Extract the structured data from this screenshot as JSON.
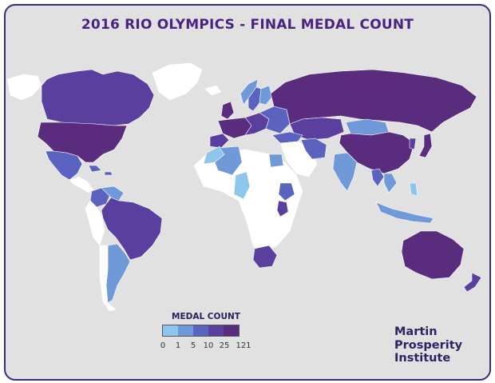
{
  "title": "2016 RIO OLYMPICS - FINAL MEDAL COUNT",
  "legend": {
    "title": "MEDAL COUNT",
    "thresholds": [
      "0",
      "1",
      "5",
      "10",
      "25",
      "121"
    ],
    "colors": [
      "#8ec5ea",
      "#6f99d8",
      "#5a63c0",
      "#5a3f9e",
      "#5a2c7e"
    ]
  },
  "brand": {
    "line1": "Martin",
    "line2": "Prosperity",
    "line3": "Institute"
  },
  "map": {
    "background": "#e1e1e1",
    "no_medal_color": "#ffffff",
    "border_color": "#3b2a7d",
    "regions": [
      {
        "name": "Alaska",
        "tier": "none"
      },
      {
        "name": "Canada",
        "tier": "10-25"
      },
      {
        "name": "Greenland",
        "tier": "none"
      },
      {
        "name": "United States",
        "tier": "25-121"
      },
      {
        "name": "Mexico",
        "tier": "5-10"
      },
      {
        "name": "Central America",
        "tier": "none"
      },
      {
        "name": "Caribbean",
        "tier": "5-10"
      },
      {
        "name": "Colombia",
        "tier": "5-10"
      },
      {
        "name": "Venezuela",
        "tier": "1-5"
      },
      {
        "name": "Brazil",
        "tier": "10-25"
      },
      {
        "name": "Peru",
        "tier": "none"
      },
      {
        "name": "Argentina",
        "tier": "1-5"
      },
      {
        "name": "Chile",
        "tier": "none"
      },
      {
        "name": "Iceland",
        "tier": "none"
      },
      {
        "name": "Norway",
        "tier": "1-5"
      },
      {
        "name": "Sweden",
        "tier": "5-10"
      },
      {
        "name": "Finland",
        "tier": "1-5"
      },
      {
        "name": "United Kingdom",
        "tier": "25-121"
      },
      {
        "name": "Western Europe",
        "tier": "25-121"
      },
      {
        "name": "Iberia",
        "tier": "10-25"
      },
      {
        "name": "Central Europe",
        "tier": "10-25"
      },
      {
        "name": "Eastern Europe",
        "tier": "5-10"
      },
      {
        "name": "Russia",
        "tier": "25-121"
      },
      {
        "name": "Kazakhstan",
        "tier": "10-25"
      },
      {
        "name": "Mongolia",
        "tier": "1-5"
      },
      {
        "name": "China",
        "tier": "25-121"
      },
      {
        "name": "Japan",
        "tier": "25-121"
      },
      {
        "name": "Korea",
        "tier": "10-25"
      },
      {
        "name": "Turkey",
        "tier": "5-10"
      },
      {
        "name": "Iran",
        "tier": "5-10"
      },
      {
        "name": "Middle East",
        "tier": "none"
      },
      {
        "name": "India",
        "tier": "1-5"
      },
      {
        "name": "Thailand",
        "tier": "5-10"
      },
      {
        "name": "Southeast Asia",
        "tier": "1-5"
      },
      {
        "name": "Indonesia",
        "tier": "1-5"
      },
      {
        "name": "Philippines",
        "tier": "0-1"
      },
      {
        "name": "Algeria",
        "tier": "1-5"
      },
      {
        "name": "Morocco",
        "tier": "0-1"
      },
      {
        "name": "Niger",
        "tier": "0-1"
      },
      {
        "name": "Egypt",
        "tier": "1-5"
      },
      {
        "name": "Ethiopia",
        "tier": "5-10"
      },
      {
        "name": "Kenya",
        "tier": "10-25"
      },
      {
        "name": "South Africa",
        "tier": "10-25"
      },
      {
        "name": "Africa (other)",
        "tier": "none"
      },
      {
        "name": "Australia",
        "tier": "25-121"
      },
      {
        "name": "New Zealand",
        "tier": "10-25"
      }
    ]
  }
}
